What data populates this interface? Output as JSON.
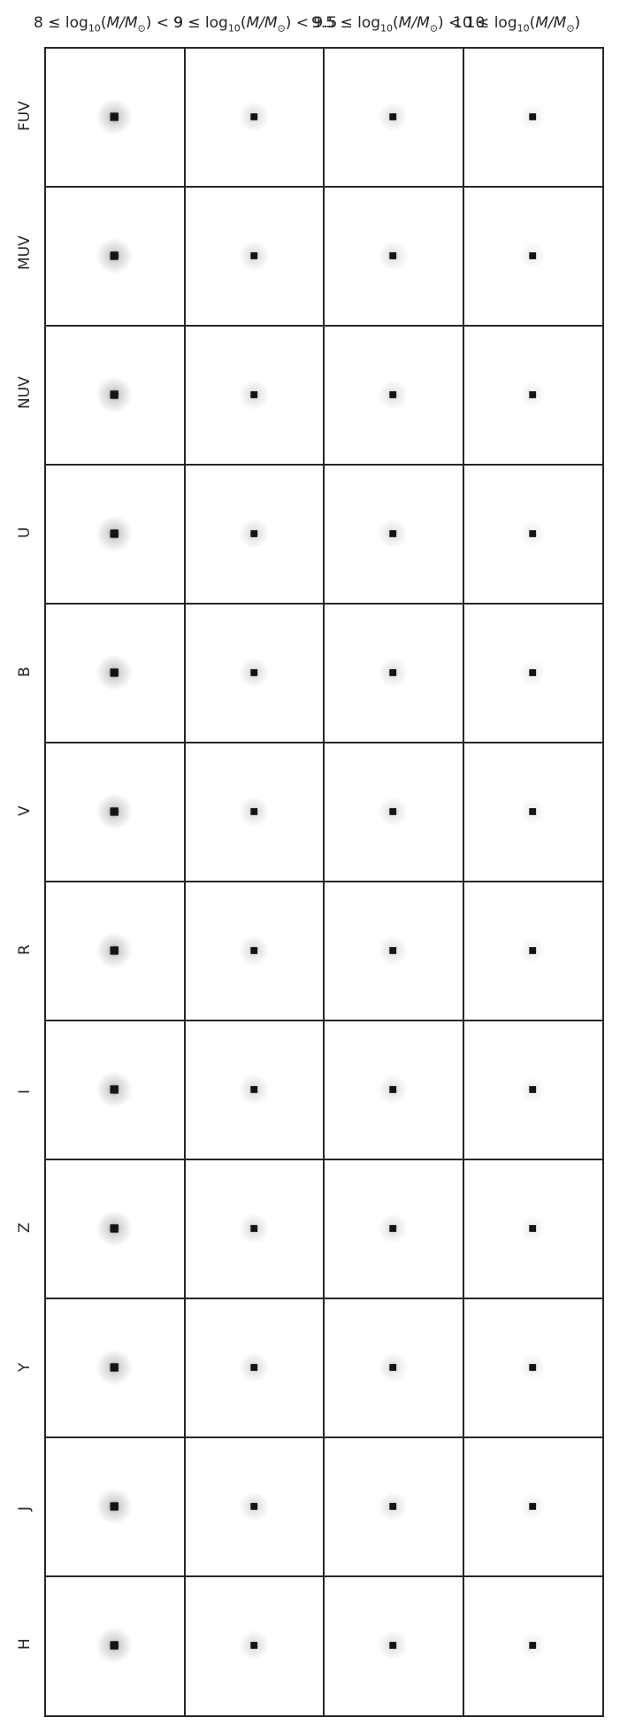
{
  "column_titles": [
    {
      "prefix": "8 ",
      "suffix": " < 9"
    },
    {
      "prefix": "9 ",
      "suffix": " < 9.5"
    },
    {
      "prefix": "9.5 ",
      "suffix": " < 10"
    },
    {
      "prefix": "10 ",
      "suffix": ""
    }
  ],
  "log_text": "log",
  "log_base": "10",
  "mass_text": "M/M",
  "sun_symbol": "⊙",
  "leq_symbol": "≤",
  "row_labels": [
    "FUV",
    "MUV",
    "NUV",
    "U",
    "B",
    "V",
    "R",
    "I",
    "Z",
    "Y",
    "J",
    "H"
  ],
  "colormap": "gray_r",
  "halo_levels": [
    0.9,
    0.55,
    0.5,
    0.3
  ],
  "core_color": "#141414",
  "border_color": "#262626"
}
